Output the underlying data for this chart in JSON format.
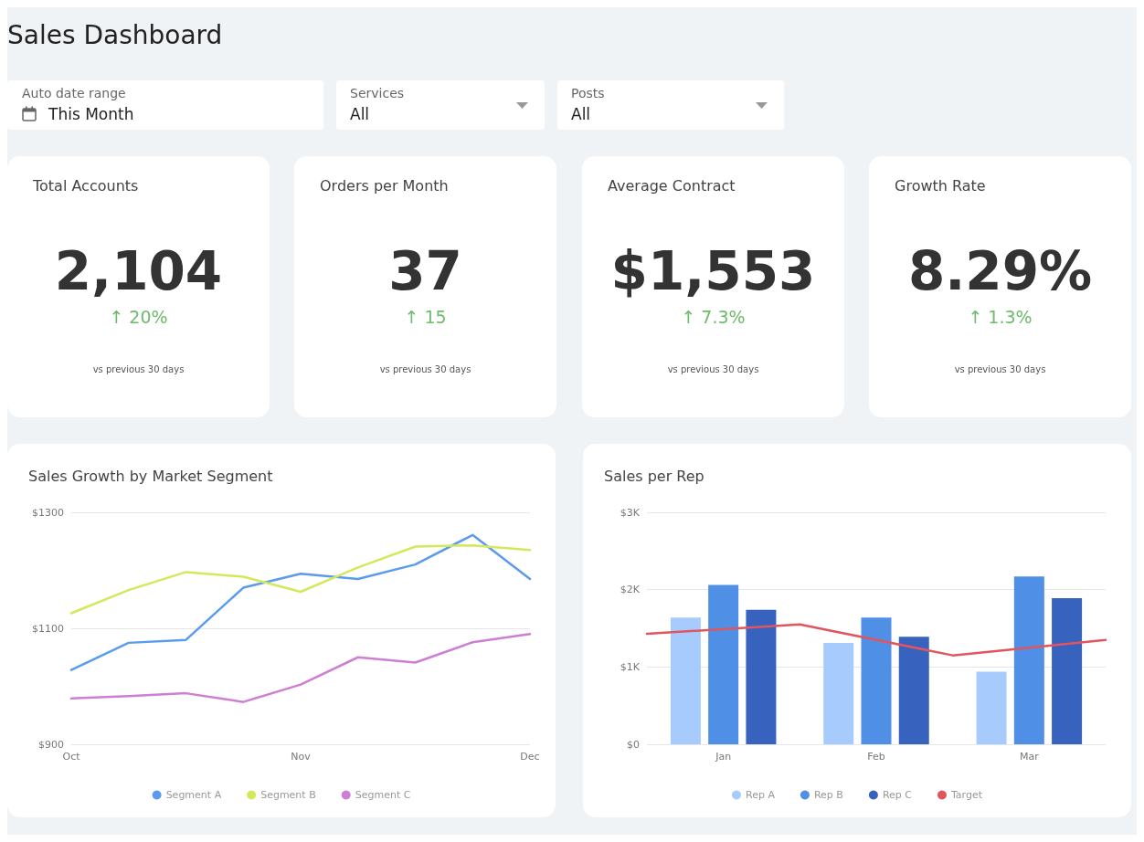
{
  "chart_data": [
    {
      "type": "other",
      "title": "Sales Dashboard",
      "annotations": [
        "Auto date range",
        "This Month",
        "Services",
        "All",
        "Posts",
        "All"
      ]
    },
    {
      "type": "other",
      "title": "Total Accounts",
      "annotations": [
        "2,104",
        "↑ 20%",
        "vs previous 30 days"
      ]
    },
    {
      "type": "other",
      "title": "Orders per Month",
      "annotations": [
        "37",
        "↑ 15",
        "vs previous 30 days"
      ]
    },
    {
      "type": "other",
      "title": "Average Contract",
      "annotations": [
        "$1,553",
        "↑ 7.3%",
        "vs previous 30 days"
      ]
    },
    {
      "type": "other",
      "title": "Growth Rate",
      "annotations": [
        "8.29%",
        "↑ 1.3%",
        "vs previous 30 days"
      ]
    },
    {
      "type": "line",
      "title": "Sales Growth by Market Segment",
      "categories": [
        "Oct",
        null,
        null,
        null,
        "Nov",
        null,
        null,
        null,
        "Dec"
      ],
      "series": [
        {
          "name": "Segment A",
          "color": "#5a9bef",
          "values": [
            1028,
            1075,
            1080,
            1170,
            1194,
            1185,
            1210,
            1261,
            1185
          ]
        },
        {
          "name": "Segment B",
          "color": "#d4e85c",
          "values": [
            1126,
            1166,
            1197,
            1189,
            1163,
            1205,
            1241,
            1243,
            1235
          ]
        },
        {
          "name": "Segment C",
          "color": "#cc7fd3",
          "values": [
            979,
            983,
            988,
            973,
            1003,
            1050,
            1041,
            1076,
            1090
          ]
        }
      ],
      "ylim": [
        900,
        1300
      ],
      "yticks": [
        {
          "value": 900,
          "label": "$900"
        },
        {
          "value": 1100,
          "label": "$1100"
        },
        {
          "value": 1300,
          "label": "$1300"
        }
      ],
      "grid": "y",
      "legend": "bottom",
      "marker": "none",
      "line_style": "solid"
    },
    {
      "type": "bar",
      "title": "Sales per Rep",
      "categories": [
        null,
        "Jan",
        null,
        "Feb",
        null,
        "Mar",
        null
      ],
      "series": [
        {
          "name": "Rep A",
          "color": "#a8cbfd",
          "values": [
            null,
            1640,
            null,
            1310,
            null,
            940,
            null
          ]
        },
        {
          "name": "Rep B",
          "color": "#4f8fe6",
          "values": [
            null,
            2060,
            null,
            1640,
            null,
            2170,
            null
          ]
        },
        {
          "name": "Rep C",
          "color": "#3762bd",
          "values": [
            null,
            1740,
            null,
            1390,
            null,
            1890,
            null
          ]
        },
        {
          "name": "Target",
          "type": "line",
          "color": "#e0565f",
          "values": [
            1430,
            null,
            1550,
            null,
            1150,
            null,
            1350
          ]
        }
      ],
      "ylim": [
        0,
        3000
      ],
      "yticks": [
        {
          "value": 0,
          "label": "$0"
        },
        {
          "value": 1000,
          "label": "$1K"
        },
        {
          "value": 2000,
          "label": "$2K"
        },
        {
          "value": 3000,
          "label": "$3K"
        }
      ],
      "grid": "y",
      "legend": "bottom",
      "marker": "none",
      "line_style": "solid"
    }
  ]
}
